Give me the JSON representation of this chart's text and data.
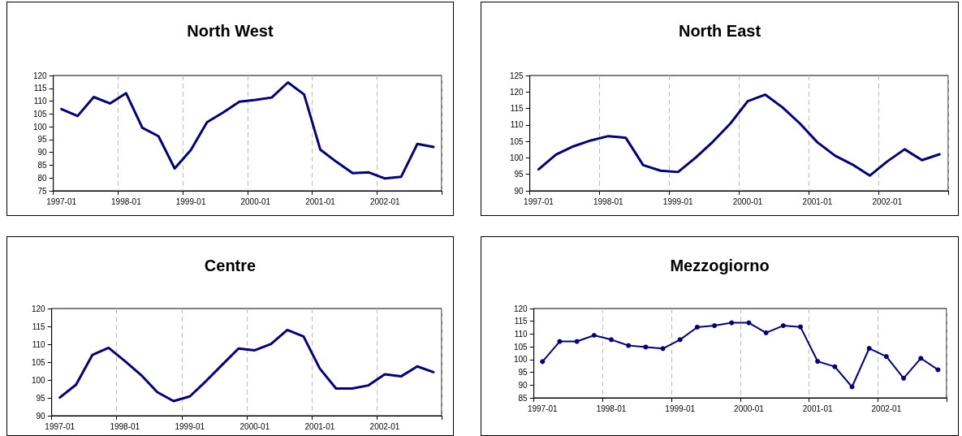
{
  "chart_data": [
    {
      "type": "line",
      "title": "North West",
      "categories": [
        "1997-01",
        null,
        null,
        null,
        "1998-01",
        null,
        null,
        null,
        "1999-01",
        null,
        null,
        null,
        "2000-01",
        null,
        null,
        null,
        "2001-01",
        null,
        null,
        null,
        "2002-01",
        null,
        null,
        null
      ],
      "series": [
        {
          "color": "#000080",
          "values": [
            106.9,
            104.2,
            111.6,
            109.1,
            113.1,
            99.6,
            96.3,
            83.7,
            90.9,
            101.8,
            105.6,
            109.8,
            110.5,
            111.4,
            117.3,
            112.6,
            91.1,
            86.3,
            81.9,
            82.2,
            79.8,
            80.5,
            93.3,
            92.1
          ]
        }
      ],
      "ylim": [
        75,
        120
      ],
      "yticks": [
        75,
        80,
        85,
        90,
        95,
        100,
        105,
        110,
        115,
        120
      ],
      "grid": "x",
      "marker": "none",
      "line_style": "solid"
    },
    {
      "type": "line",
      "title": "North East",
      "categories": [
        "1997-01",
        null,
        null,
        null,
        "1998-01",
        null,
        null,
        null,
        "1999-01",
        null,
        null,
        null,
        "2000-01",
        null,
        null,
        null,
        "2001-01",
        null,
        null,
        null,
        "2002-01",
        null,
        null,
        null
      ],
      "series": [
        {
          "color": "#000080",
          "values": [
            96.5,
            101.0,
            103.5,
            105.3,
            106.6,
            106.1,
            97.8,
            96.1,
            95.7,
            100.0,
            104.9,
            110.4,
            117.2,
            119.2,
            115.3,
            110.4,
            104.7,
            100.7,
            98.0,
            94.6,
            98.9,
            102.6,
            99.3,
            101.1
          ]
        }
      ],
      "ylim": [
        90,
        125
      ],
      "yticks": [
        90,
        95,
        100,
        105,
        110,
        115,
        120,
        125
      ],
      "grid": "x",
      "marker": "none",
      "line_style": "solid"
    },
    {
      "type": "line",
      "title": "Centre",
      "categories": [
        "1997-01",
        null,
        null,
        null,
        "1998-01",
        null,
        null,
        null,
        "1999-01",
        null,
        null,
        null,
        "2000-01",
        null,
        null,
        null,
        "2001-01",
        null,
        null,
        null,
        "2002-01",
        null,
        null,
        null
      ],
      "series": [
        {
          "color": "#000080",
          "values": [
            95.1,
            98.7,
            107.0,
            109.0,
            105.3,
            101.4,
            96.6,
            94.1,
            95.4,
            99.7,
            104.3,
            108.8,
            108.3,
            110.1,
            114.0,
            112.2,
            103.2,
            97.6,
            97.6,
            98.5,
            101.6,
            101.0,
            103.8,
            102.2
          ]
        }
      ],
      "ylim": [
        90,
        120
      ],
      "yticks": [
        90,
        95,
        100,
        105,
        110,
        115,
        120
      ],
      "grid": "x",
      "marker": "none",
      "line_style": "solid"
    },
    {
      "type": "line",
      "title": "Mezzogiorno",
      "categories": [
        "1997-01",
        null,
        null,
        null,
        "1998-01",
        null,
        null,
        null,
        "1999-01",
        null,
        null,
        null,
        "2000-01",
        null,
        null,
        null,
        "2001-01",
        null,
        null,
        null,
        "2002-01",
        null,
        null,
        null
      ],
      "series": [
        {
          "color": "#000080",
          "values": [
            99.2,
            107.1,
            107.1,
            109.5,
            107.8,
            105.5,
            104.9,
            104.3,
            107.8,
            112.7,
            113.3,
            114.4,
            114.4,
            110.5,
            113.3,
            112.8,
            99.3,
            97.2,
            89.3,
            104.4,
            101.2,
            92.7,
            100.5,
            96.0
          ]
        }
      ],
      "ylim": [
        85,
        120
      ],
      "yticks": [
        85,
        90,
        95,
        100,
        105,
        110,
        115,
        120
      ],
      "grid": "x",
      "marker": "circle",
      "line_style": "solid"
    }
  ]
}
